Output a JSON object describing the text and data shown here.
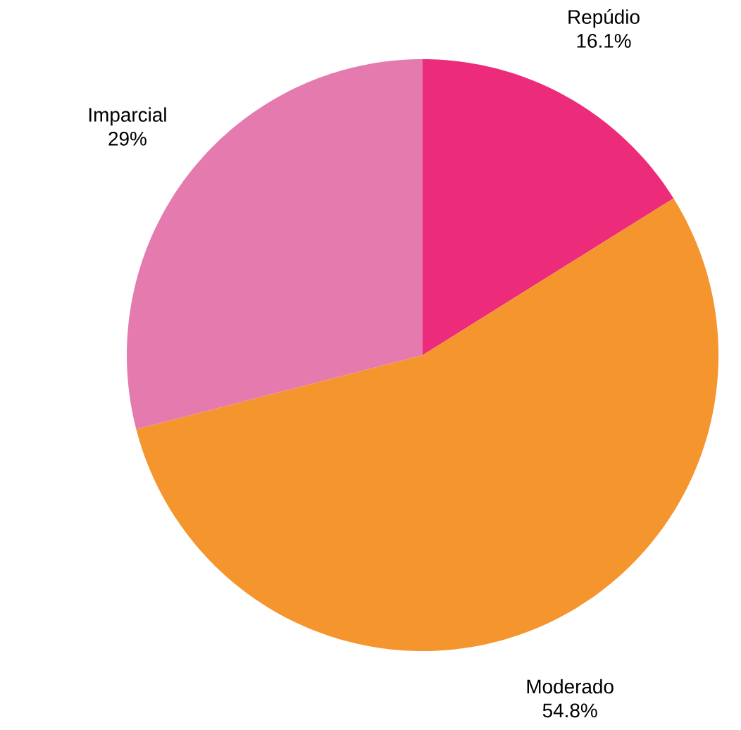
{
  "chart_data": {
    "type": "pie",
    "categories": [
      "Repúdio",
      "Moderado",
      "Imparcial"
    ],
    "values": [
      16.1,
      54.8,
      29
    ],
    "value_labels": [
      "16.1%",
      "54.8%",
      "29%"
    ],
    "colors": [
      "#ec2c7a",
      "#f5952e",
      "#e57aaf"
    ]
  }
}
